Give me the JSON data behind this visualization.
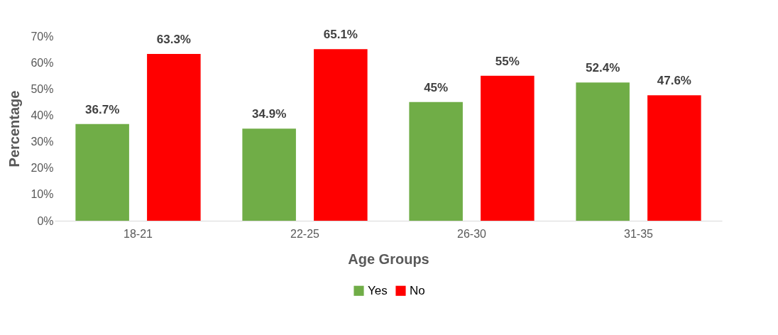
{
  "chart_data": {
    "type": "bar",
    "xlabel": "Age Groups",
    "ylabel": "Percentage",
    "categories": [
      "18-21",
      "22-25",
      "26-30",
      "31-35"
    ],
    "series": [
      {
        "name": "Yes",
        "color": "#70ad47",
        "values": [
          36.7,
          34.9,
          45,
          52.4
        ],
        "value_labels": [
          "36.7%",
          "34.9%",
          "45%",
          "52.4%"
        ]
      },
      {
        "name": "No",
        "color": "#ff0000",
        "values": [
          63.3,
          65.1,
          55,
          47.6
        ],
        "value_labels": [
          "63.3%",
          "65.1%",
          "55%",
          "47.6%"
        ]
      }
    ],
    "ylim": [
      0,
      70
    ],
    "yticks": [
      {
        "value": 0,
        "label": "0%"
      },
      {
        "value": 10,
        "label": "10%"
      },
      {
        "value": 20,
        "label": "20%"
      },
      {
        "value": 30,
        "label": "30%"
      },
      {
        "value": 40,
        "label": "40%"
      },
      {
        "value": 50,
        "label": "50%"
      },
      {
        "value": 60,
        "label": "60%"
      },
      {
        "value": 70,
        "label": "70%"
      }
    ],
    "grid": false,
    "legend": "bottom"
  }
}
